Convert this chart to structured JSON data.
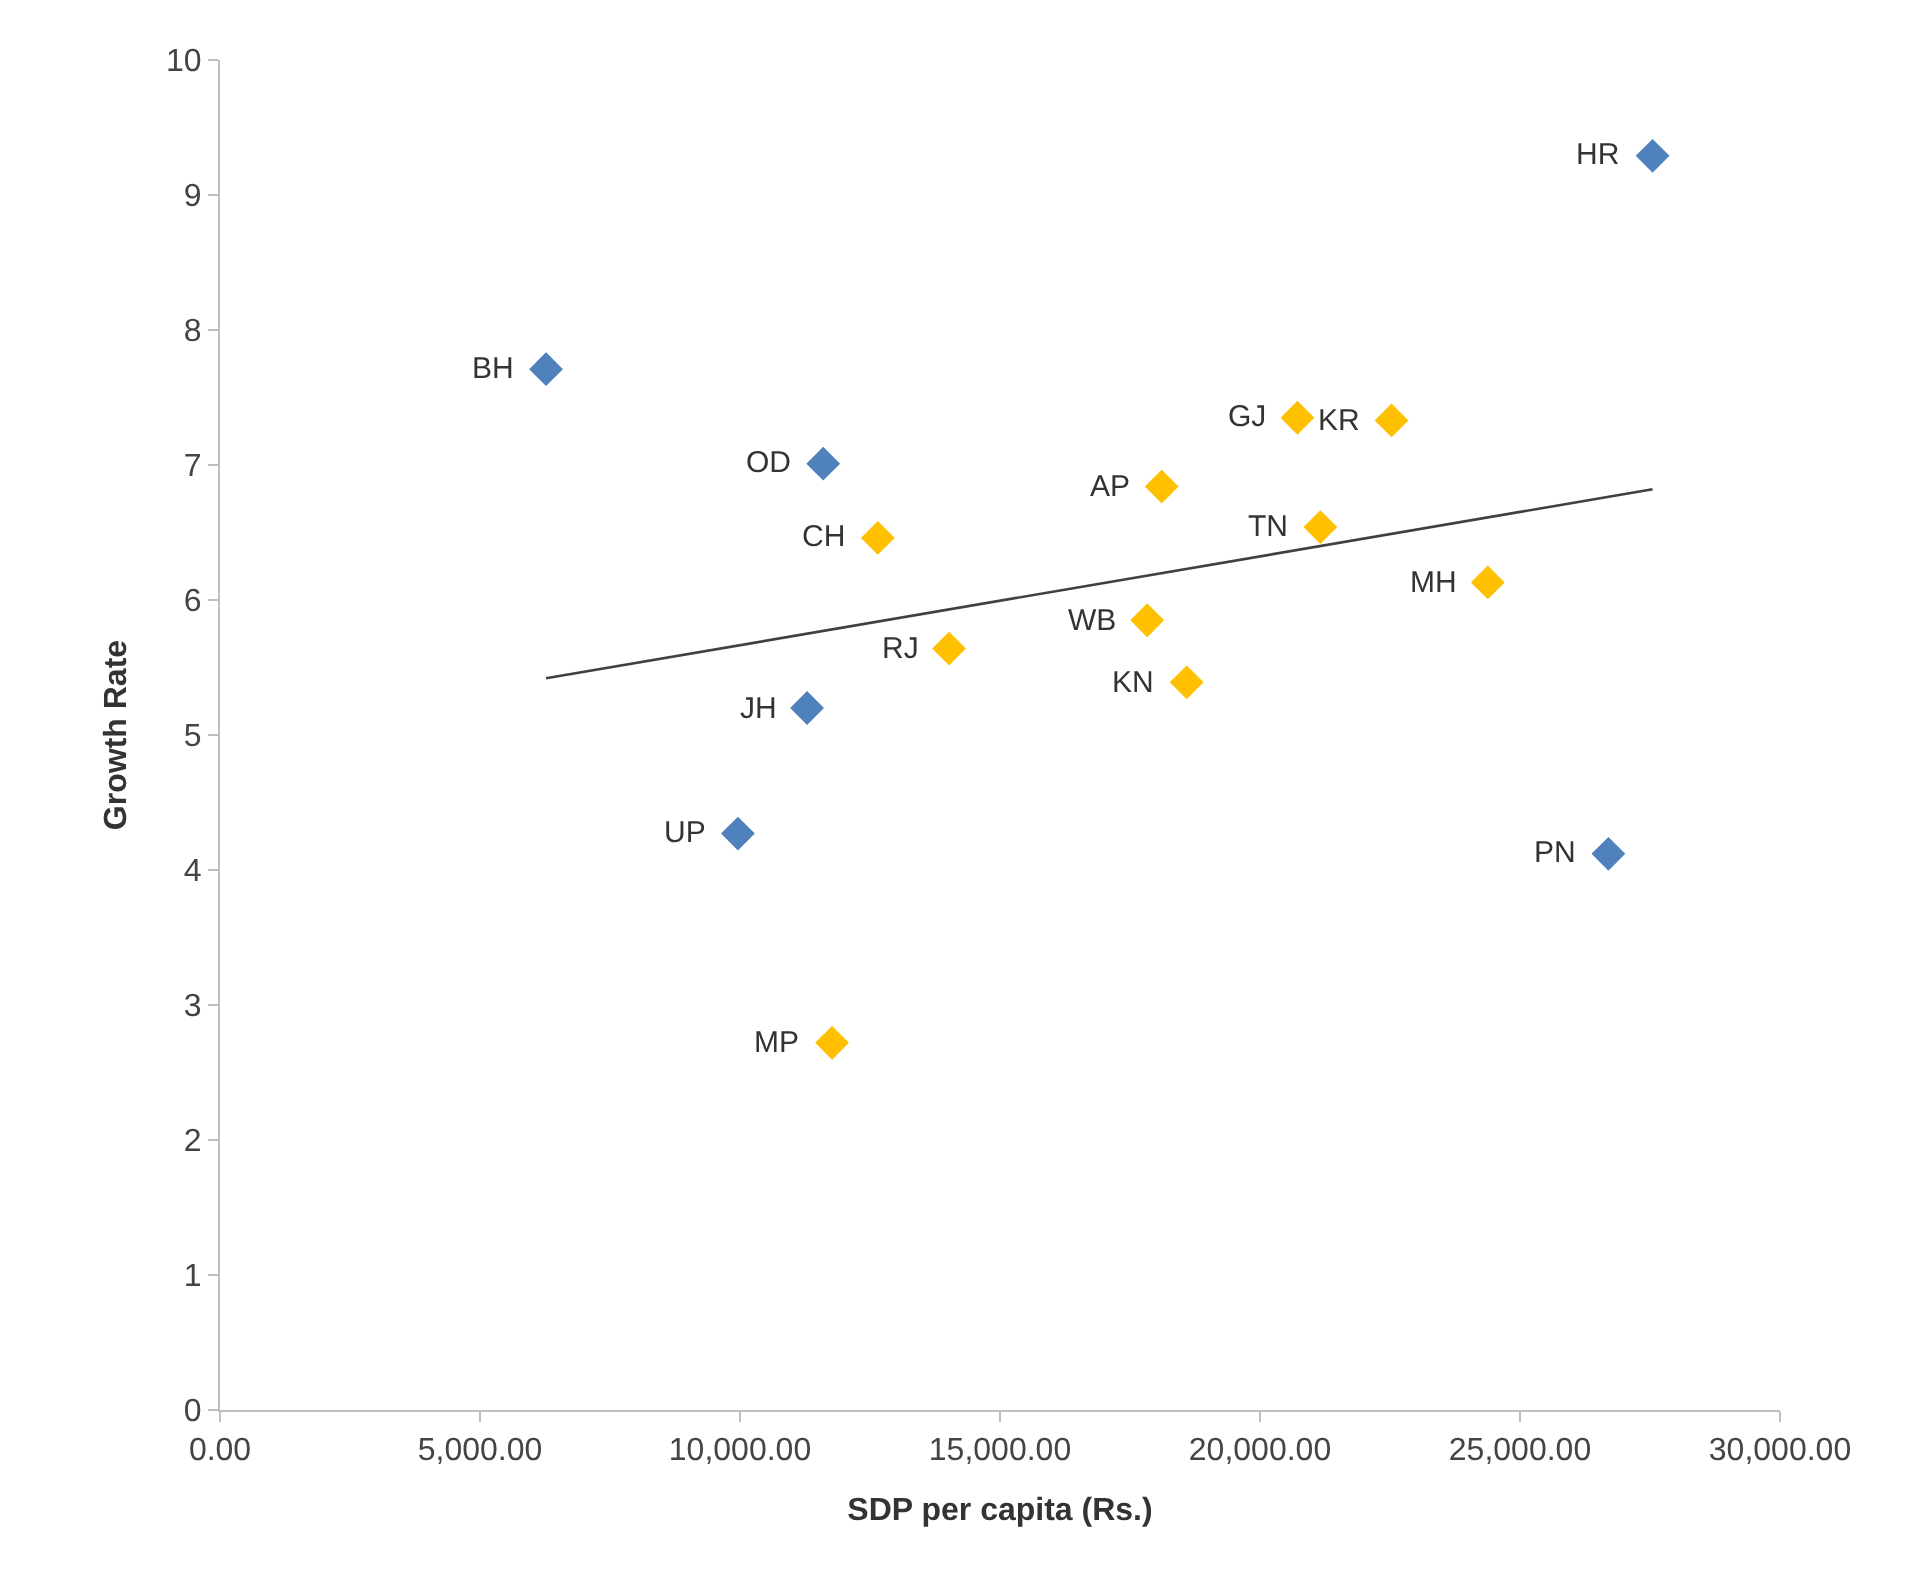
{
  "chart_data": {
    "type": "scatter",
    "xlabel": "SDP per capita (Rs.)",
    "ylabel": "Growth Rate",
    "marker": "diamond",
    "series": [
      {
        "color": "#4f81bd",
        "x": [
          27550,
          6270,
          11600,
          11290,
          9960,
          26700
        ],
        "values": [
          9.29,
          7.71,
          7.01,
          5.2,
          4.27,
          4.12
        ]
      },
      {
        "color": "#ffc000",
        "x": [
          20720,
          22530,
          18110,
          12650,
          21160,
          24380,
          17830,
          14020,
          18590,
          11770
        ],
        "values": [
          7.35,
          7.33,
          6.84,
          6.46,
          6.54,
          6.13,
          5.85,
          5.64,
          5.39,
          2.72
        ]
      },
      {
        "type": "line",
        "color": "#404040",
        "marker": "none",
        "x": [
          6270,
          27550
        ],
        "values": [
          5.42,
          6.82
        ]
      }
    ],
    "annotations": [
      {
        "text": "HR",
        "x": 27550,
        "y": 9.29
      },
      {
        "text": "BH",
        "x": 6270,
        "y": 7.71
      },
      {
        "text": "OD",
        "x": 11600,
        "y": 7.01
      },
      {
        "text": "JH",
        "x": 11290,
        "y": 5.2
      },
      {
        "text": "UP",
        "x": 9960,
        "y": 4.27
      },
      {
        "text": "PN",
        "x": 26700,
        "y": 4.12
      },
      {
        "text": "GJ",
        "x": 20720,
        "y": 7.35
      },
      {
        "text": "KR",
        "x": 22530,
        "y": 7.33
      },
      {
        "text": "AP",
        "x": 18110,
        "y": 6.84
      },
      {
        "text": "CH",
        "x": 12650,
        "y": 6.46
      },
      {
        "text": "TN",
        "x": 21160,
        "y": 6.54
      },
      {
        "text": "MH",
        "x": 24380,
        "y": 6.13
      },
      {
        "text": "WB",
        "x": 17830,
        "y": 5.85
      },
      {
        "text": "RJ",
        "x": 14020,
        "y": 5.64
      },
      {
        "text": "KN",
        "x": 18590,
        "y": 5.39
      },
      {
        "text": "MP",
        "x": 11770,
        "y": 2.72
      }
    ],
    "xlim": [
      0,
      30000
    ],
    "xticks": [
      {
        "value": 0,
        "label": "0.00"
      },
      {
        "value": 5000,
        "label": "5,000.00"
      },
      {
        "value": 10000,
        "label": "10,000.00"
      },
      {
        "value": 15000,
        "label": "15,000.00"
      },
      {
        "value": 20000,
        "label": "20,000.00"
      },
      {
        "value": 25000,
        "label": "25,000.00"
      },
      {
        "value": 30000,
        "label": "30,000.00"
      }
    ],
    "ylim": [
      0,
      10
    ],
    "yticks": [
      0,
      1,
      2,
      3,
      4,
      5,
      6,
      7,
      8,
      9,
      10
    ]
  }
}
